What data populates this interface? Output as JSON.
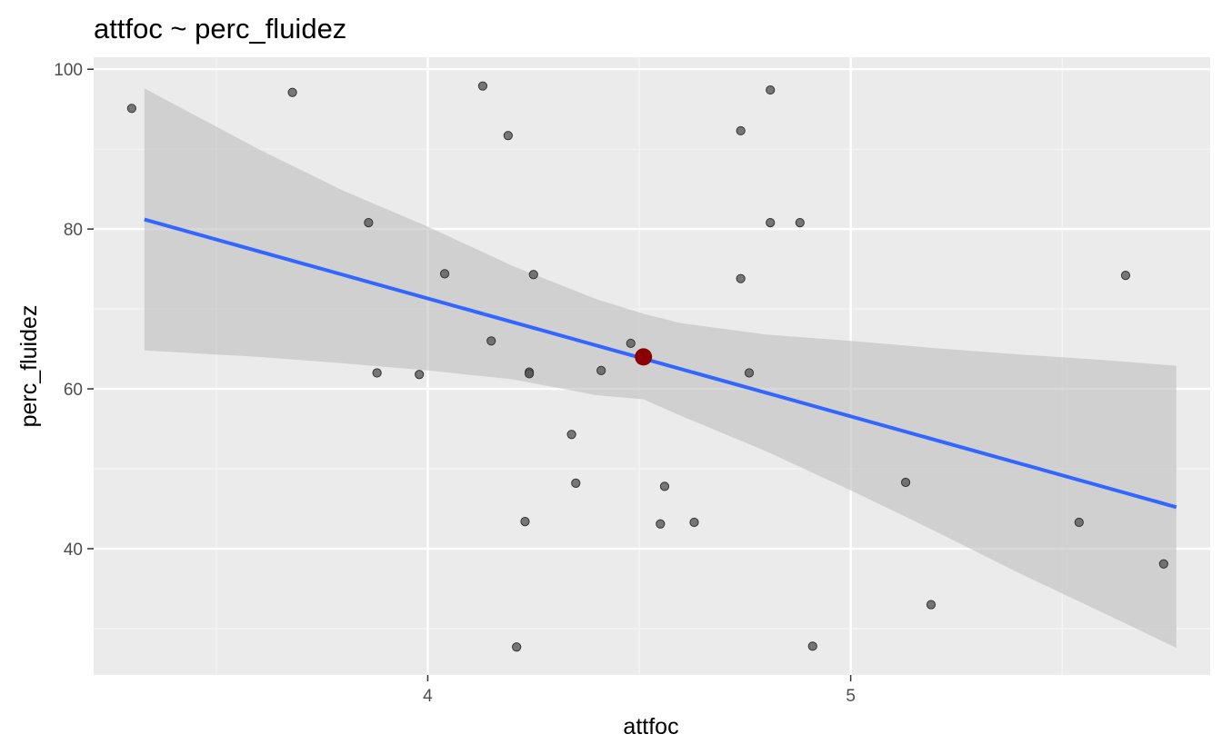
{
  "colors": {
    "panel_background": "#EBEBEB",
    "grid_major": "#FFFFFF",
    "grid_minor": "#F5F5F5",
    "points": "#595959",
    "regression_line": "#3366FF",
    "confidence_band": "#BEBEBE",
    "highlight_point": "#8B0000"
  },
  "chart_data": {
    "type": "scatter",
    "title": "attfoc ~ perc_fluidez",
    "xlabel": "attfoc",
    "ylabel": "perc_fluidez",
    "xlim": [
      3.21,
      5.85
    ],
    "ylim": [
      24.2,
      101.5
    ],
    "x_ticks": [
      4,
      5
    ],
    "y_ticks": [
      40,
      60,
      80,
      100
    ],
    "x_minor_ticks": [
      3.5,
      4.5,
      5.5
    ],
    "y_minor_ticks": [
      30,
      50,
      70,
      90
    ],
    "grid": true,
    "legend": "none",
    "points": [
      {
        "x": 3.3,
        "y": 95.1
      },
      {
        "x": 3.68,
        "y": 97.1
      },
      {
        "x": 3.86,
        "y": 80.8
      },
      {
        "x": 3.88,
        "y": 62.0
      },
      {
        "x": 3.98,
        "y": 61.8
      },
      {
        "x": 4.04,
        "y": 74.4
      },
      {
        "x": 4.13,
        "y": 97.9
      },
      {
        "x": 4.15,
        "y": 66.0
      },
      {
        "x": 4.19,
        "y": 91.7
      },
      {
        "x": 4.21,
        "y": 27.7
      },
      {
        "x": 4.23,
        "y": 43.4
      },
      {
        "x": 4.24,
        "y": 62.1
      },
      {
        "x": 4.24,
        "y": 61.9
      },
      {
        "x": 4.25,
        "y": 74.3
      },
      {
        "x": 4.34,
        "y": 54.3
      },
      {
        "x": 4.35,
        "y": 48.2
      },
      {
        "x": 4.41,
        "y": 62.3
      },
      {
        "x": 4.48,
        "y": 65.7
      },
      {
        "x": 4.55,
        "y": 43.1
      },
      {
        "x": 4.56,
        "y": 47.8
      },
      {
        "x": 4.63,
        "y": 43.3
      },
      {
        "x": 4.74,
        "y": 73.8
      },
      {
        "x": 4.74,
        "y": 92.3
      },
      {
        "x": 4.76,
        "y": 62.0
      },
      {
        "x": 4.81,
        "y": 97.4
      },
      {
        "x": 4.81,
        "y": 80.8
      },
      {
        "x": 4.88,
        "y": 80.8
      },
      {
        "x": 4.91,
        "y": 27.8
      },
      {
        "x": 5.13,
        "y": 48.3
      },
      {
        "x": 5.19,
        "y": 33.0
      },
      {
        "x": 5.54,
        "y": 43.3
      },
      {
        "x": 5.65,
        "y": 74.2
      },
      {
        "x": 5.74,
        "y": 38.1
      }
    ],
    "highlight_point": {
      "x": 4.51,
      "y": 64.0
    },
    "regression_line": {
      "x": [
        3.33,
        5.77
      ],
      "y": [
        81.2,
        45.2
      ]
    },
    "confidence_band": {
      "x": [
        3.33,
        3.6,
        3.8,
        4.0,
        4.2,
        4.4,
        4.51,
        4.6,
        4.8,
        5.0,
        5.2,
        5.4,
        5.6,
        5.77
      ],
      "upper": [
        97.6,
        90.0,
        84.8,
        80.3,
        75.4,
        71.2,
        69.4,
        68.2,
        66.8,
        66.0,
        65.1,
        64.3,
        63.6,
        62.9
      ],
      "lower": [
        64.8,
        64.0,
        63.2,
        62.3,
        61.2,
        59.2,
        58.7,
        56.6,
        52.2,
        47.3,
        42.2,
        36.9,
        31.9,
        27.6
      ]
    }
  }
}
